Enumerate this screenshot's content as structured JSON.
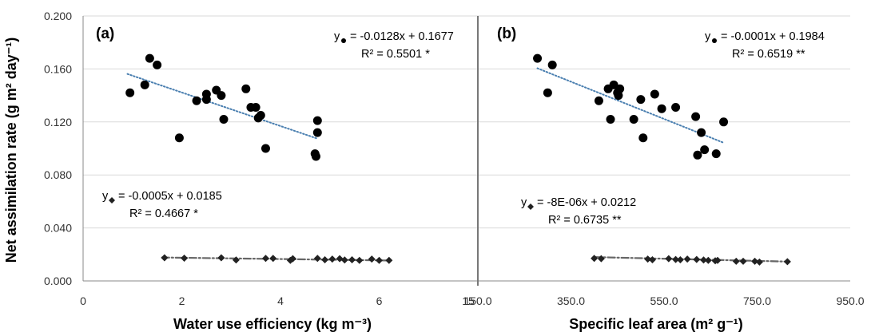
{
  "ylabel": "Net assimilation rate (g m² day⁻¹)",
  "yticks": [
    "0.000",
    "0.040",
    "0.080",
    "0.120",
    "0.160",
    "0.200"
  ],
  "colors": {
    "circle": "#000000",
    "diamond": "#222222",
    "trend_circle": "#4a7fb0",
    "trend_diamond": "#666666",
    "grid": "#d9d9d9",
    "axis": "#888888"
  },
  "chart_data": [
    {
      "type": "scatter",
      "panel_label": "(a)",
      "xlabel": "Water use efficiency (kg m⁻³)",
      "xlim": [
        0,
        8
      ],
      "xticks": [
        "0",
        "2",
        "4",
        "6"
      ],
      "ylim": [
        0,
        0.2
      ],
      "grid": true,
      "series": [
        {
          "marker": "circle",
          "points": [
            [
              0.95,
              0.142
            ],
            [
              1.25,
              0.148
            ],
            [
              1.35,
              0.168
            ],
            [
              1.5,
              0.163
            ],
            [
              1.95,
              0.108
            ],
            [
              2.3,
              0.136
            ],
            [
              2.5,
              0.137
            ],
            [
              2.5,
              0.141
            ],
            [
              2.7,
              0.144
            ],
            [
              2.8,
              0.14
            ],
            [
              2.85,
              0.122
            ],
            [
              3.3,
              0.145
            ],
            [
              3.4,
              0.131
            ],
            [
              3.5,
              0.131
            ],
            [
              3.55,
              0.123
            ],
            [
              3.6,
              0.125
            ],
            [
              3.7,
              0.1
            ],
            [
              4.7,
              0.096
            ],
            [
              4.72,
              0.094
            ],
            [
              4.75,
              0.112
            ],
            [
              4.75,
              0.121
            ]
          ],
          "trendline": {
            "x": [
              0.9,
              4.75
            ],
            "y": [
              0.1562,
              0.1074
            ]
          },
          "equation": "= -0.0128x + 0.1677",
          "r2": "R² = 0.5501 *"
        },
        {
          "marker": "diamond",
          "points": [
            [
              1.65,
              0.0175
            ],
            [
              2.05,
              0.0172
            ],
            [
              2.8,
              0.0175
            ],
            [
              3.1,
              0.0158
            ],
            [
              3.7,
              0.017
            ],
            [
              3.85,
              0.017
            ],
            [
              4.2,
              0.0155
            ],
            [
              4.25,
              0.0168
            ],
            [
              4.75,
              0.017
            ],
            [
              4.9,
              0.016
            ],
            [
              5.05,
              0.0165
            ],
            [
              5.2,
              0.0168
            ],
            [
              5.3,
              0.0158
            ],
            [
              5.45,
              0.016
            ],
            [
              5.6,
              0.0155
            ],
            [
              5.85,
              0.0165
            ],
            [
              6.0,
              0.0155
            ],
            [
              6.2,
              0.0155
            ]
          ],
          "trendline": {
            "x": [
              1.6,
              6.25
            ],
            "y": [
              0.0177,
              0.0154
            ]
          },
          "equation": "= -0.0005x + 0.0185",
          "r2": "R² = 0.4667 *"
        }
      ]
    },
    {
      "type": "scatter",
      "panel_label": "(b)",
      "xlabel": "Specific leaf area (m² g⁻¹)",
      "xlim": [
        150,
        950
      ],
      "xticks": [
        "150.0",
        "350.0",
        "550.0",
        "750.0",
        "950.0"
      ],
      "ylim": [
        0,
        0.2
      ],
      "grid": true,
      "series": [
        {
          "marker": "circle",
          "points": [
            [
              278,
              0.168
            ],
            [
              300,
              0.142
            ],
            [
              310,
              0.163
            ],
            [
              410,
              0.136
            ],
            [
              430,
              0.145
            ],
            [
              435,
              0.122
            ],
            [
              442,
              0.148
            ],
            [
              450,
              0.142
            ],
            [
              452,
              0.14
            ],
            [
              455,
              0.145
            ],
            [
              485,
              0.122
            ],
            [
              500,
              0.137
            ],
            [
              505,
              0.108
            ],
            [
              530,
              0.141
            ],
            [
              545,
              0.13
            ],
            [
              575,
              0.131
            ],
            [
              618,
              0.124
            ],
            [
              622,
              0.095
            ],
            [
              630,
              0.112
            ],
            [
              637,
              0.099
            ],
            [
              662,
              0.096
            ],
            [
              678,
              0.12
            ]
          ],
          "trendline": {
            "x": [
              278,
              678
            ],
            "y": [
              0.1605,
              0.1043
            ]
          },
          "equation": "= -0.0001x + 0.1984",
          "r2": "R² = 0.6519 **"
        },
        {
          "marker": "diamond",
          "points": [
            [
              400,
              0.017
            ],
            [
              415,
              0.0168
            ],
            [
              515,
              0.0165
            ],
            [
              525,
              0.016
            ],
            [
              560,
              0.0168
            ],
            [
              575,
              0.0162
            ],
            [
              585,
              0.016
            ],
            [
              600,
              0.0165
            ],
            [
              620,
              0.0162
            ],
            [
              635,
              0.0158
            ],
            [
              645,
              0.0155
            ],
            [
              660,
              0.0152
            ],
            [
              665,
              0.0155
            ],
            [
              705,
              0.0148
            ],
            [
              720,
              0.0148
            ],
            [
              745,
              0.0148
            ],
            [
              755,
              0.0142
            ],
            [
              815,
              0.0145
            ]
          ],
          "trendline": {
            "x": [
              400,
              815
            ],
            "y": [
              0.018,
              0.0146
            ]
          },
          "equation": "= -8E-06x + 0.0212",
          "r2": "R² = 0.6735 **"
        }
      ]
    }
  ]
}
